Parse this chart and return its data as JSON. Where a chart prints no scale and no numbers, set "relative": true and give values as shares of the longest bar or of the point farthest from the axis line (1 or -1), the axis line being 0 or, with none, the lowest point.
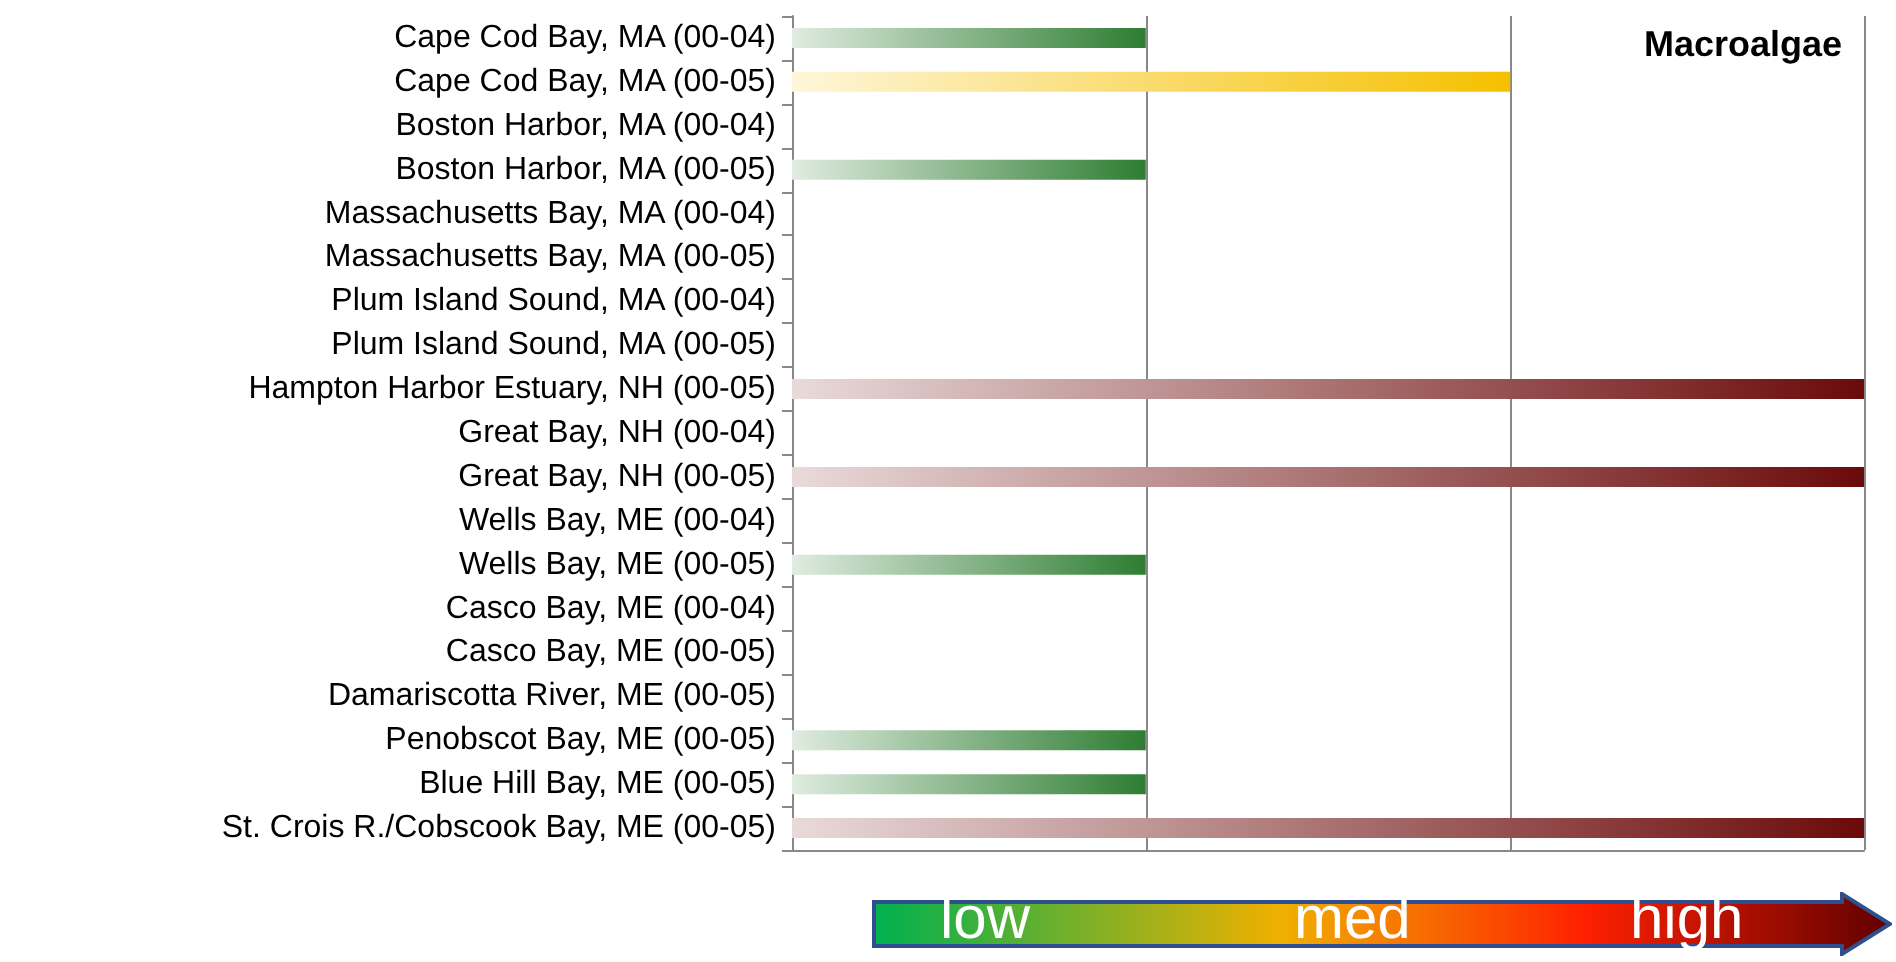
{
  "chart_data": {
    "type": "bar",
    "orientation": "horizontal",
    "relative": true,
    "title": "Macroalgae",
    "categories": [
      "Cape Cod Bay, MA (00-04)",
      "Cape Cod Bay, MA (00-05)",
      "Boston Harbor, MA (00-04)",
      "Boston Harbor, MA (00-05)",
      "Massachusetts Bay, MA (00-04)",
      "Massachusetts Bay, MA (00-05)",
      "Plum Island Sound, MA (00-04)",
      "Plum Island Sound, MA (00-05)",
      "Hampton Harbor Estuary, NH (00-05)",
      "Great Bay, NH (00-04)",
      "Great Bay, NH (00-05)",
      "Wells Bay, ME (00-04)",
      "Wells Bay, ME (00-05)",
      "Casco Bay, ME (00-04)",
      "Casco Bay, ME (00-05)",
      "Damariscotta River, ME (00-05)",
      "Penobscot Bay, ME (00-05)",
      "Blue Hill Bay, ME (00-05)",
      "St. Crois R./Cobscook Bay, ME (00-05)"
    ],
    "values": [
      0.33,
      0.67,
      null,
      0.33,
      null,
      null,
      null,
      null,
      1,
      null,
      1,
      null,
      0.33,
      null,
      null,
      null,
      0.33,
      0.33,
      1
    ],
    "colors": [
      "#2e7d32",
      "#f5c000",
      null,
      "#2e7d32",
      null,
      null,
      null,
      null,
      "#6b0a0a",
      null,
      "#6b0a0a",
      null,
      "#2e7d32",
      null,
      null,
      null,
      "#2e7d32",
      "#2e7d32",
      "#6b0a0a"
    ],
    "ref_lines": [
      {
        "axis": "x",
        "value": 0.33,
        "color": "#888888"
      },
      {
        "axis": "x",
        "value": 0.67,
        "color": "#888888"
      },
      {
        "axis": "x",
        "value": 1,
        "color": "#888888"
      }
    ],
    "annotations": [
      "low",
      "med",
      "high"
    ]
  }
}
